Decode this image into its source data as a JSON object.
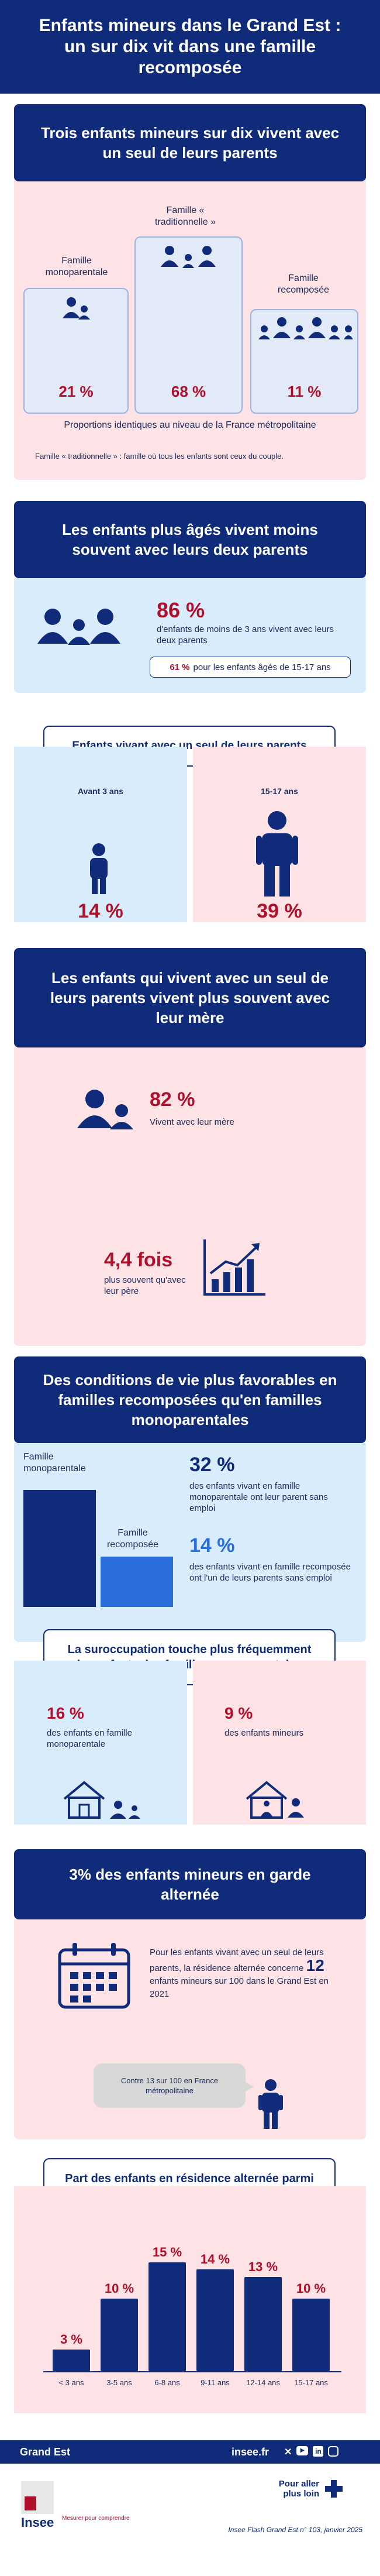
{
  "title": "Enfants mineurs dans le Grand Est : un sur dix vit dans une famille recomposée",
  "s1": {
    "heading": "Trois enfants mineurs sur dix vivent avec un seul de leurs parents",
    "families": [
      {
        "label": "Famille monoparentale",
        "value": "21 %"
      },
      {
        "label": "Famille « traditionnelle »",
        "value": "68 %"
      },
      {
        "label": "Famille recomposée",
        "value": "11 %"
      }
    ],
    "note1": "Proportions identiques au niveau de la France métropolitaine",
    "note2": "Famille « traditionnelle » : famille où tous les enfants sont ceux du couple."
  },
  "s2": {
    "heading": "Les enfants plus âgés vivent moins souvent avec leurs deux parents",
    "big": "86 %",
    "big_text": "d'enfants de moins de 3 ans vivent avec leurs deux parents",
    "sub_value": "61 %",
    "sub_text": "pour les enfants âgés de 15-17 ans",
    "pill": "Enfants vivant avec un seul de leurs parents",
    "left_label": "Avant 3 ans",
    "left_value": "14 %",
    "right_label": "15-17 ans",
    "right_value": "39 %"
  },
  "s3": {
    "heading": "Les enfants qui vivent avec un seul de leurs parents vivent plus souvent avec leur mère",
    "value1": "82 %",
    "text1": "Vivent avec leur mère",
    "value2": "4,4 fois",
    "text2": "plus souvent qu'avec leur père"
  },
  "s4": {
    "heading": "Des conditions de vie plus favorables en familles recomposées qu'en familles monoparentales",
    "bar1_label": "Famille monoparentale",
    "bar2_label": "Famille recomposée",
    "value1": "32 %",
    "text1": "des enfants vivant en famille monoparentale ont leur parent sans emploi",
    "value2": "14 %",
    "text2": "des enfants vivant en famille recomposée ont l'un de leurs parents sans emploi",
    "bars": [
      32,
      14
    ],
    "pill": "La suroccupation touche plus fréquemment les enfants des familles monoparentales",
    "left_value": "16 %",
    "left_text": "des enfants en famille monoparentale",
    "right_value": "9 %",
    "right_text": "des enfants mineurs"
  },
  "s5": {
    "heading": "3% des enfants mineurs en garde alternée",
    "text_before": "Pour les enfants vivant avec un seul de leurs parents, la résidence alternée concerne",
    "highlight": "12",
    "text_after": "enfants mineurs sur 100 dans le Grand Est en 2021",
    "bubble": "Contre 13 sur 100 en France métropolitaine",
    "pill": "Part des enfants en résidence alternée parmi les enfants de parents séparés"
  },
  "chart_data": {
    "type": "bar",
    "categories": [
      "< 3 ans",
      "3-5 ans",
      "6-8 ans",
      "9-11 ans",
      "12-14 ans",
      "15-17 ans"
    ],
    "values": [
      3,
      10,
      15,
      14,
      13,
      10
    ],
    "value_labels": [
      "3 %",
      "10 %",
      "15 %",
      "14 %",
      "13 %",
      "10 %"
    ],
    "title": "Part des enfants en résidence alternée parmi les enfants de parents séparés"
  },
  "footer": {
    "region": "Grand Est",
    "site": "insee.fr",
    "more": "Pour aller plus loin",
    "logo": "Insee",
    "tagline": "Mesurer pour comprendre",
    "source": "Insee Flash Grand Est n° 103, janvier 2025"
  },
  "colors": {
    "navy": "#0f2b7a",
    "red": "#b0102a",
    "pink": "#fde3e6",
    "light_blue": "#d9ecfb",
    "bright_blue": "#2a6fdb"
  }
}
